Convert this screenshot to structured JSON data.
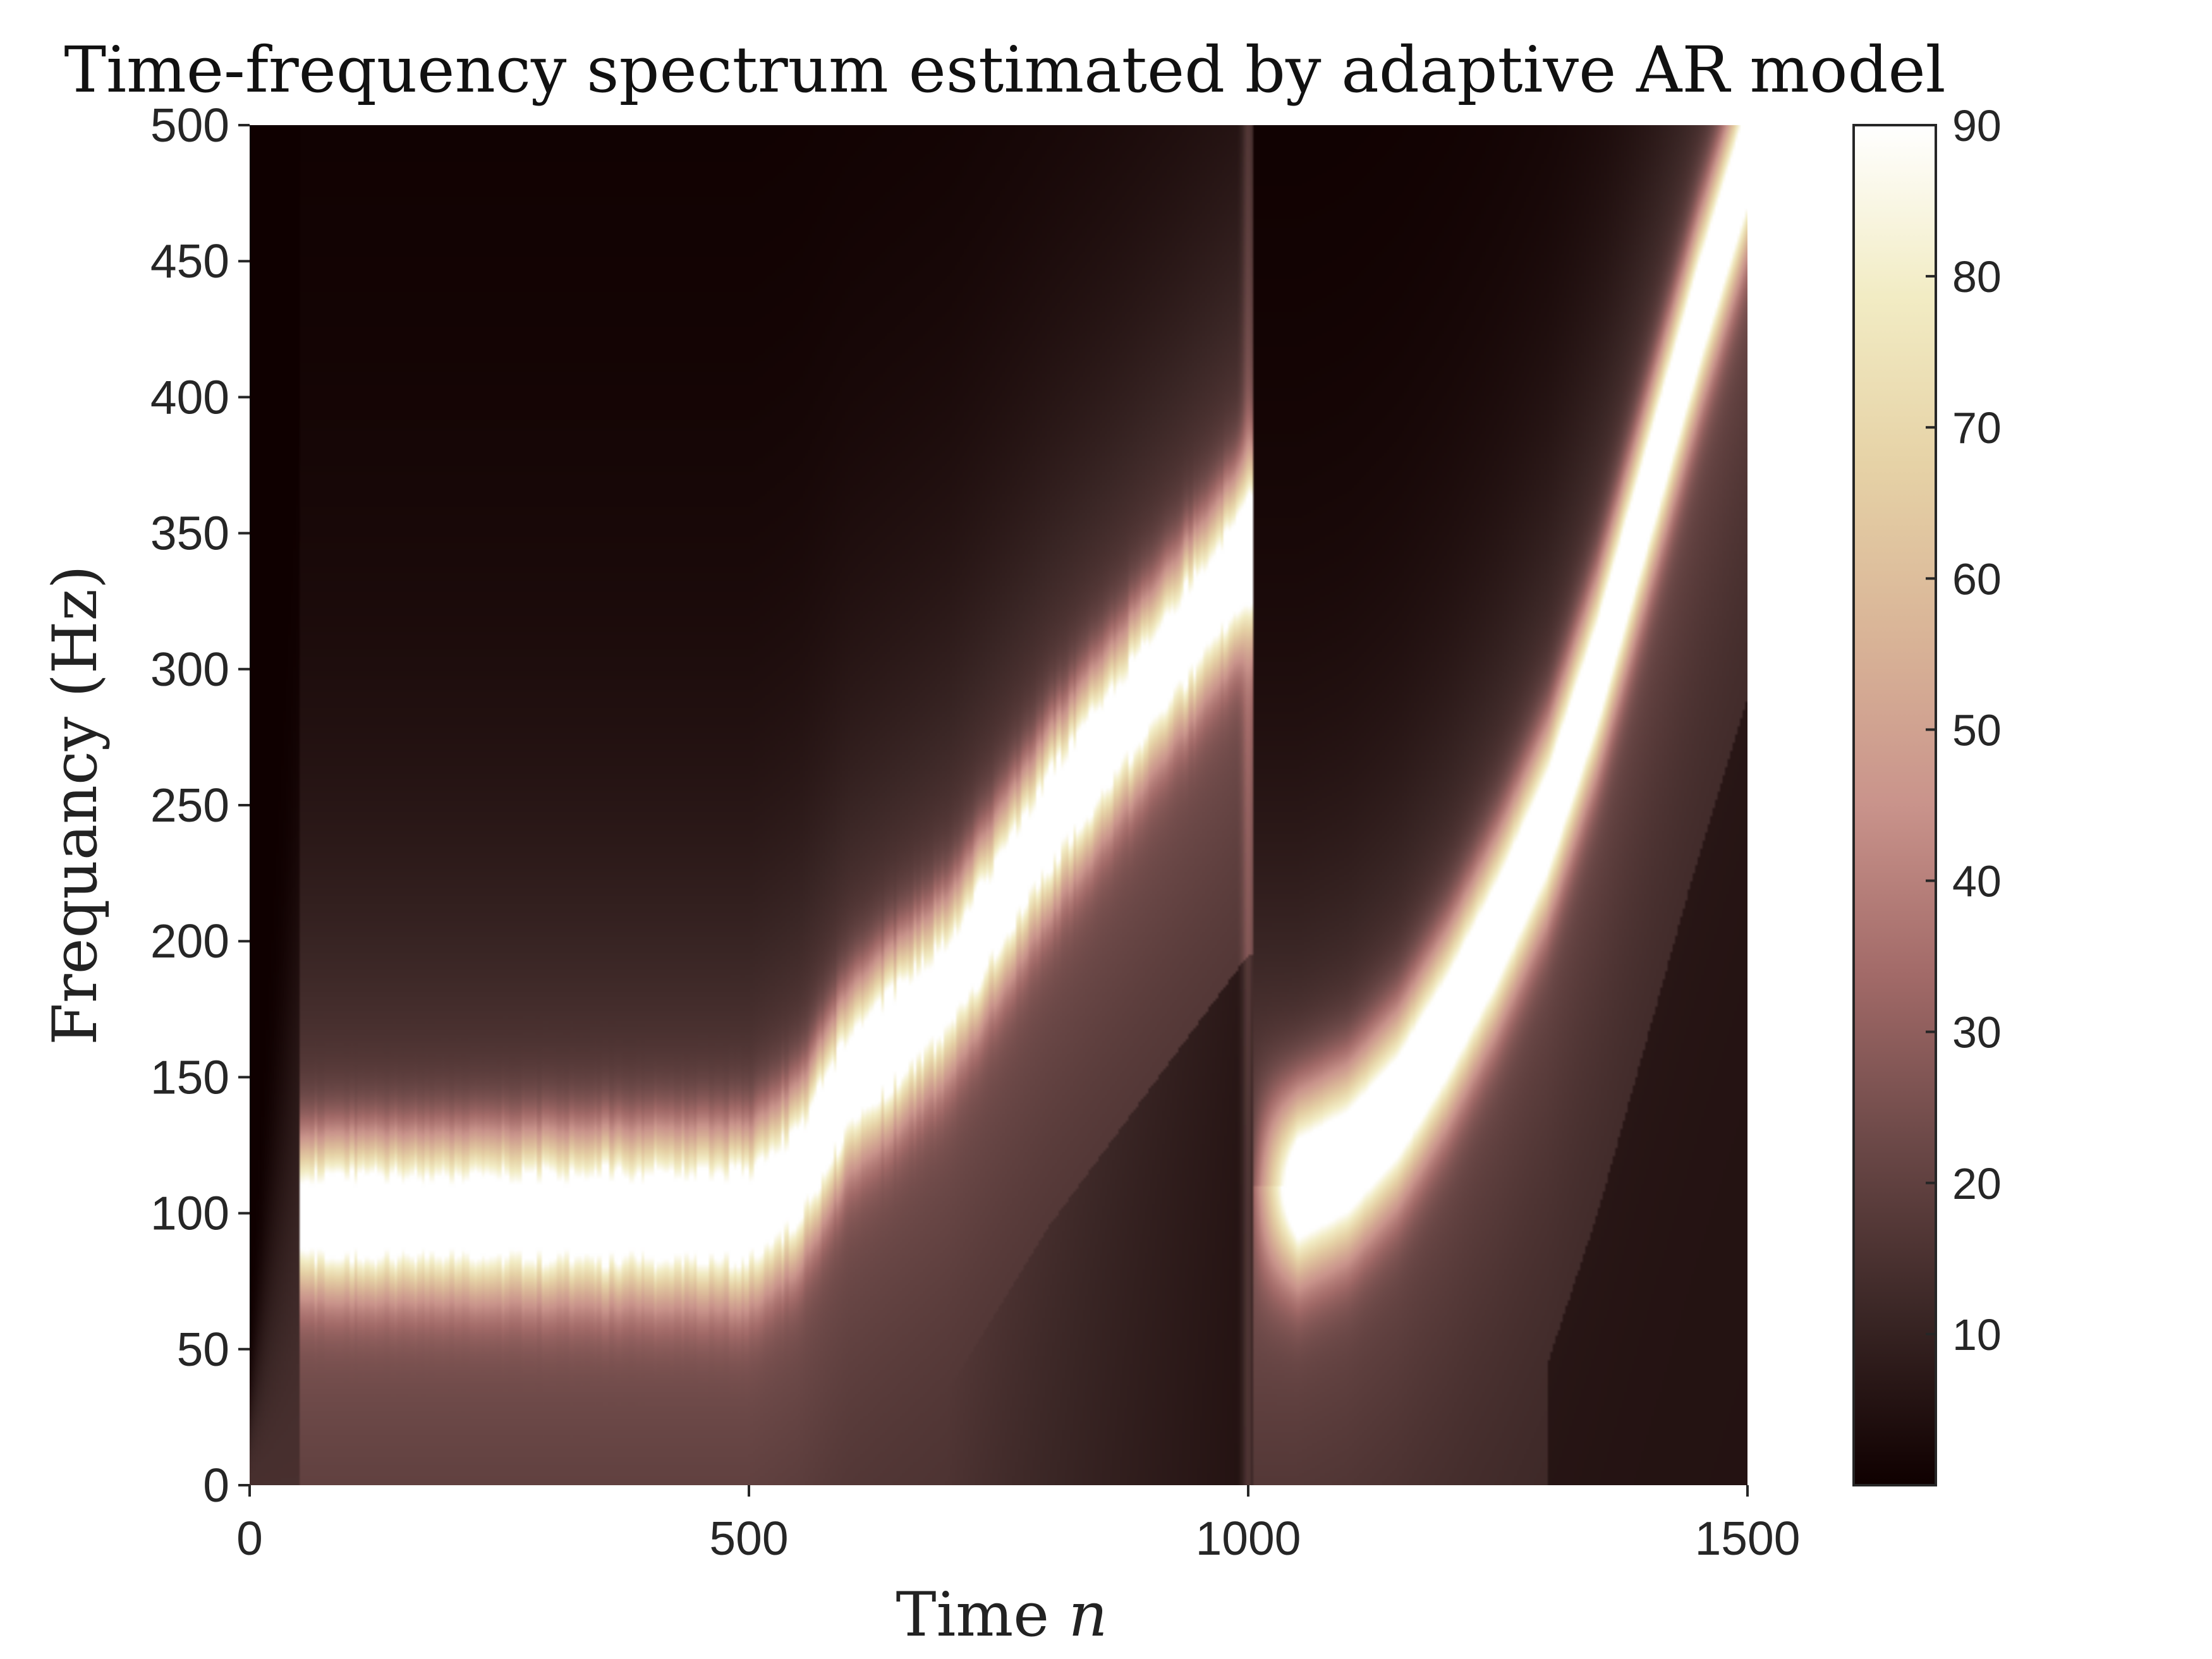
{
  "chart_data": {
    "type": "heatmap",
    "title": "Time-frequency spectrum estimated by adaptive AR model",
    "xlabel_text": "Time ",
    "xlabel_var": "n",
    "ylabel": "Frequancy (Hz)",
    "xlim": [
      0,
      1500
    ],
    "ylim": [
      0,
      500
    ],
    "xticks": [
      0,
      500,
      1000,
      1500
    ],
    "yticks": [
      0,
      50,
      100,
      150,
      200,
      250,
      300,
      350,
      400,
      450,
      500
    ],
    "colorbar": {
      "range": [
        0,
        90
      ],
      "ticks": [
        10,
        20,
        30,
        40,
        50,
        60,
        70,
        80,
        90
      ],
      "colormap": "pink",
      "colors": [
        "#0f0000",
        "#3a2625",
        "#6b4847",
        "#a26a68",
        "#c9938b",
        "#d9b497",
        "#e6d2a6",
        "#f2ecc4",
        "#ffffff"
      ]
    },
    "ridge": [
      {
        "segment": "first",
        "time": [
          50,
          100,
          200,
          300,
          400,
          500,
          550,
          600,
          700,
          800,
          900,
          1000
        ],
        "frequency": [
          100,
          100,
          100,
          100,
          100,
          100,
          115,
          150,
          185,
          245,
          295,
          345
        ]
      },
      {
        "segment": "second",
        "time": [
          1050,
          1100,
          1150,
          1200,
          1250,
          1300,
          1350,
          1400,
          1450,
          1500
        ],
        "frequency": [
          110,
          120,
          140,
          170,
          205,
          245,
          300,
          365,
          430,
          490
        ]
      }
    ],
    "peak_level": 90,
    "background_level": 0
  }
}
